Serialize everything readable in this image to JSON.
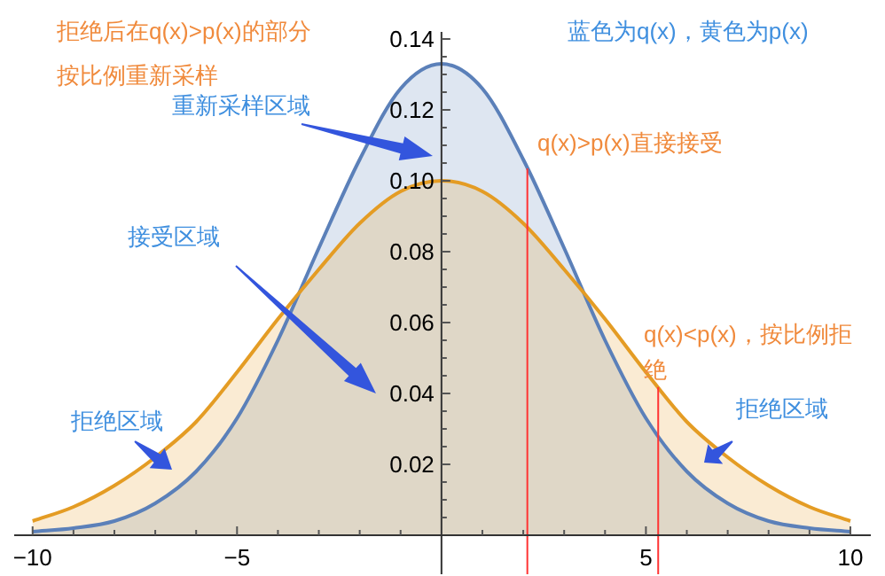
{
  "chart_data": {
    "type": "area",
    "x": [
      -10,
      -9,
      -8,
      -7,
      -6,
      -5,
      -4,
      -3,
      -2,
      -1,
      0,
      1,
      2,
      3,
      4,
      5,
      6,
      7,
      8,
      9,
      10
    ],
    "series": [
      {
        "color": "#5b80b9",
        "values": [
          0.001,
          0.002,
          0.004,
          0.009,
          0.018,
          0.033,
          0.055,
          0.081,
          0.106,
          0.126,
          0.133,
          0.126,
          0.106,
          0.081,
          0.055,
          0.033,
          0.018,
          0.009,
          0.004,
          0.002,
          0.001
        ]
      },
      {
        "color": "#e49c24",
        "values": [
          0.004,
          0.008,
          0.014,
          0.022,
          0.032,
          0.046,
          0.061,
          0.075,
          0.088,
          0.097,
          0.1,
          0.097,
          0.088,
          0.075,
          0.061,
          0.046,
          0.032,
          0.022,
          0.014,
          0.008,
          0.004
        ]
      }
    ],
    "xlim": [
      -10.45,
      10.5
    ],
    "ylim": [
      -0.011,
      0.142
    ],
    "xticks": [
      {
        "value": -10,
        "label": "−10"
      },
      {
        "value": -9,
        "label": null
      },
      {
        "value": -8,
        "label": null
      },
      {
        "value": -7,
        "label": null
      },
      {
        "value": -6,
        "label": null
      },
      {
        "value": -5,
        "label": "−5"
      },
      {
        "value": -4,
        "label": null
      },
      {
        "value": -3,
        "label": null
      },
      {
        "value": -2,
        "label": null
      },
      {
        "value": -1,
        "label": null
      },
      {
        "value": 1,
        "label": null
      },
      {
        "value": 2,
        "label": null
      },
      {
        "value": 3,
        "label": null
      },
      {
        "value": 4,
        "label": null
      },
      5,
      {
        "value": 6,
        "label": null
      },
      {
        "value": 7,
        "label": null
      },
      {
        "value": 8,
        "label": null
      },
      {
        "value": 9,
        "label": null
      },
      10
    ],
    "yticks": [
      {
        "value": 0.005,
        "label": null
      },
      {
        "value": 0.01,
        "label": null
      },
      {
        "value": 0.015,
        "label": null
      },
      0.02,
      {
        "value": 0.025,
        "label": null
      },
      {
        "value": 0.03,
        "label": null
      },
      {
        "value": 0.035,
        "label": null
      },
      0.04,
      {
        "value": 0.045,
        "label": null
      },
      {
        "value": 0.05,
        "label": null
      },
      {
        "value": 0.055,
        "label": null
      },
      0.06,
      {
        "value": 0.065,
        "label": null
      },
      {
        "value": 0.07,
        "label": null
      },
      {
        "value": 0.075,
        "label": null
      },
      0.08,
      {
        "value": 0.085,
        "label": null
      },
      {
        "value": 0.09,
        "label": null
      },
      {
        "value": 0.095,
        "label": null
      },
      {
        "value": 0.1,
        "label": "0.10"
      },
      {
        "value": 0.105,
        "label": null
      },
      {
        "value": 0.11,
        "label": null
      },
      {
        "value": 0.115,
        "label": null
      },
      0.12,
      {
        "value": 0.125,
        "label": null
      },
      {
        "value": 0.13,
        "label": null
      },
      {
        "value": 0.135,
        "label": null
      },
      0.14
    ],
    "ref_lines": [
      {
        "axis": "x",
        "value": 2.1,
        "color": "#ff3333"
      },
      {
        "axis": "x",
        "value": 5.3,
        "color": "#ff3333"
      }
    ],
    "annotations": [
      "拒绝后在q(x)>p(x)的部分",
      "按比例重新采样",
      "蓝色为q(x)，黄色为p(x)",
      "重新采样区域",
      "q(x)>p(x)直接接受",
      "接受区域",
      "q(x)<p(x)，按比例拒绝",
      "拒绝区域",
      "拒绝区域"
    ]
  }
}
